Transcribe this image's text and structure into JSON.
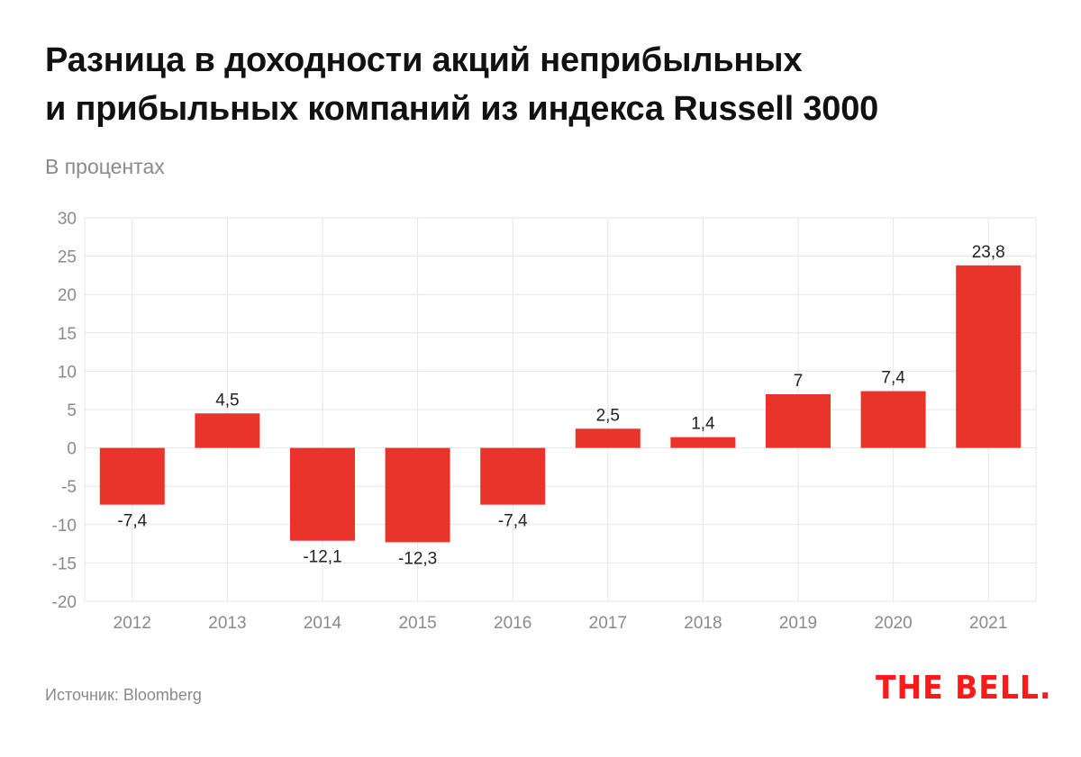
{
  "chart_data": {
    "type": "bar",
    "title_line1": "Разница в доходности акций неприбыльных",
    "title_line2": "и прибыльных компаний из индекса Russell 3000",
    "subtitle": "В процентах",
    "categories": [
      "2012",
      "2013",
      "2014",
      "2015",
      "2016",
      "2017",
      "2018",
      "2019",
      "2020",
      "2021"
    ],
    "values": [
      -7.4,
      4.5,
      -12.1,
      -12.3,
      -7.4,
      2.5,
      1.4,
      7,
      7.4,
      23.8
    ],
    "labels": [
      "-7,4",
      "4,5",
      "-12,1",
      "-12,3",
      "-7,4",
      "2,5",
      "1,4",
      "7",
      "7,4",
      "23,8"
    ],
    "yticks": [
      30,
      25,
      20,
      15,
      10,
      5,
      0,
      -5,
      -10,
      -15,
      -20
    ],
    "ylim": [
      -20,
      30
    ],
    "grid": true,
    "bar_color": "#e8342a",
    "xlabel": "",
    "ylabel": ""
  },
  "footer": {
    "source": "Источник: Bloomberg",
    "logo": "THE BELL."
  }
}
